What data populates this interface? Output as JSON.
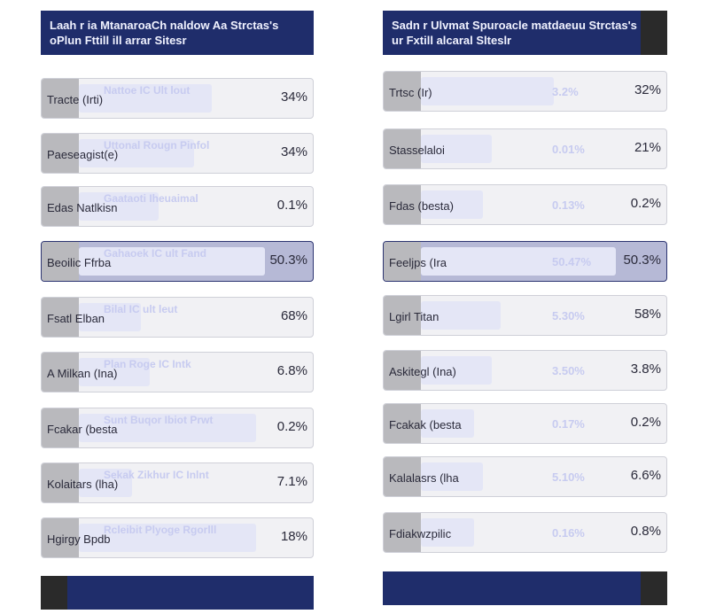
{
  "left": {
    "title": "Laah r ia MtanaroaCh naldow Aa Strctas's oPlun Fttill ill arrar Sitesr",
    "rows": [
      {
        "label": "Tracte (Irti)",
        "sub": "Nattoe IC Ult lout",
        "value": "34%"
      },
      {
        "label": "Paeseagist(e)",
        "sub": "Uttonal Rougn Pinfol",
        "value": "34%"
      },
      {
        "label": "Edas Natlkisn",
        "sub": "Gaataoti Iheuaimal",
        "value": "0.1%"
      },
      {
        "label": "Beoilic Ffrba",
        "sub": "Gahaoek IC ult Fand",
        "value": "50.3%"
      },
      {
        "label": "Fsatl Elban",
        "sub": "Bilal IC ult leut",
        "value": "68%"
      },
      {
        "label": "A Milkan (Ina)",
        "sub": "Plan Roge IC Intk",
        "value": "6.8%"
      },
      {
        "label": "Fcakar (besta",
        "sub": "Sunt Buqor Ibiot Prwt",
        "value": "0.2%"
      },
      {
        "label": "Kolaitars (lha)",
        "sub": "Sekak Zikhur IC Inlnt",
        "value": "7.1%"
      },
      {
        "label": "Hgirgy Bpdb",
        "sub": "Rcleibit Plyoge Rgorlll",
        "value": "18%"
      }
    ]
  },
  "right": {
    "title": "Sadn r Ulvmat Spuroacle matdaeuu Strctas's oFl ur Fxtill alcaral Slteslr",
    "rows": [
      {
        "label": "Trtsc (Ir)",
        "mid": "3.2%",
        "value": "32%"
      },
      {
        "label": "Stasselaloi",
        "mid": "0.01%",
        "value": "21%"
      },
      {
        "label": "Fdas (besta)",
        "mid": "0.13%",
        "value": "0.2%"
      },
      {
        "label": "Feeljps (Ira",
        "mid": "50.47%",
        "value": "50.3%"
      },
      {
        "label": "Lgirl Titan",
        "mid": "5.30%",
        "value": "58%"
      },
      {
        "label": "Askitegl (Ina)",
        "mid": "3.50%",
        "value": "3.8%"
      },
      {
        "label": "Fcakak (besta",
        "mid": "0.17%",
        "value": "0.2%"
      },
      {
        "label": "Kalalasrs (lha",
        "mid": "5.10%",
        "value": "6.6%"
      },
      {
        "label": "Fdiakwzpilic",
        "mid": "0.16%",
        "value": "0.8%"
      }
    ]
  }
}
